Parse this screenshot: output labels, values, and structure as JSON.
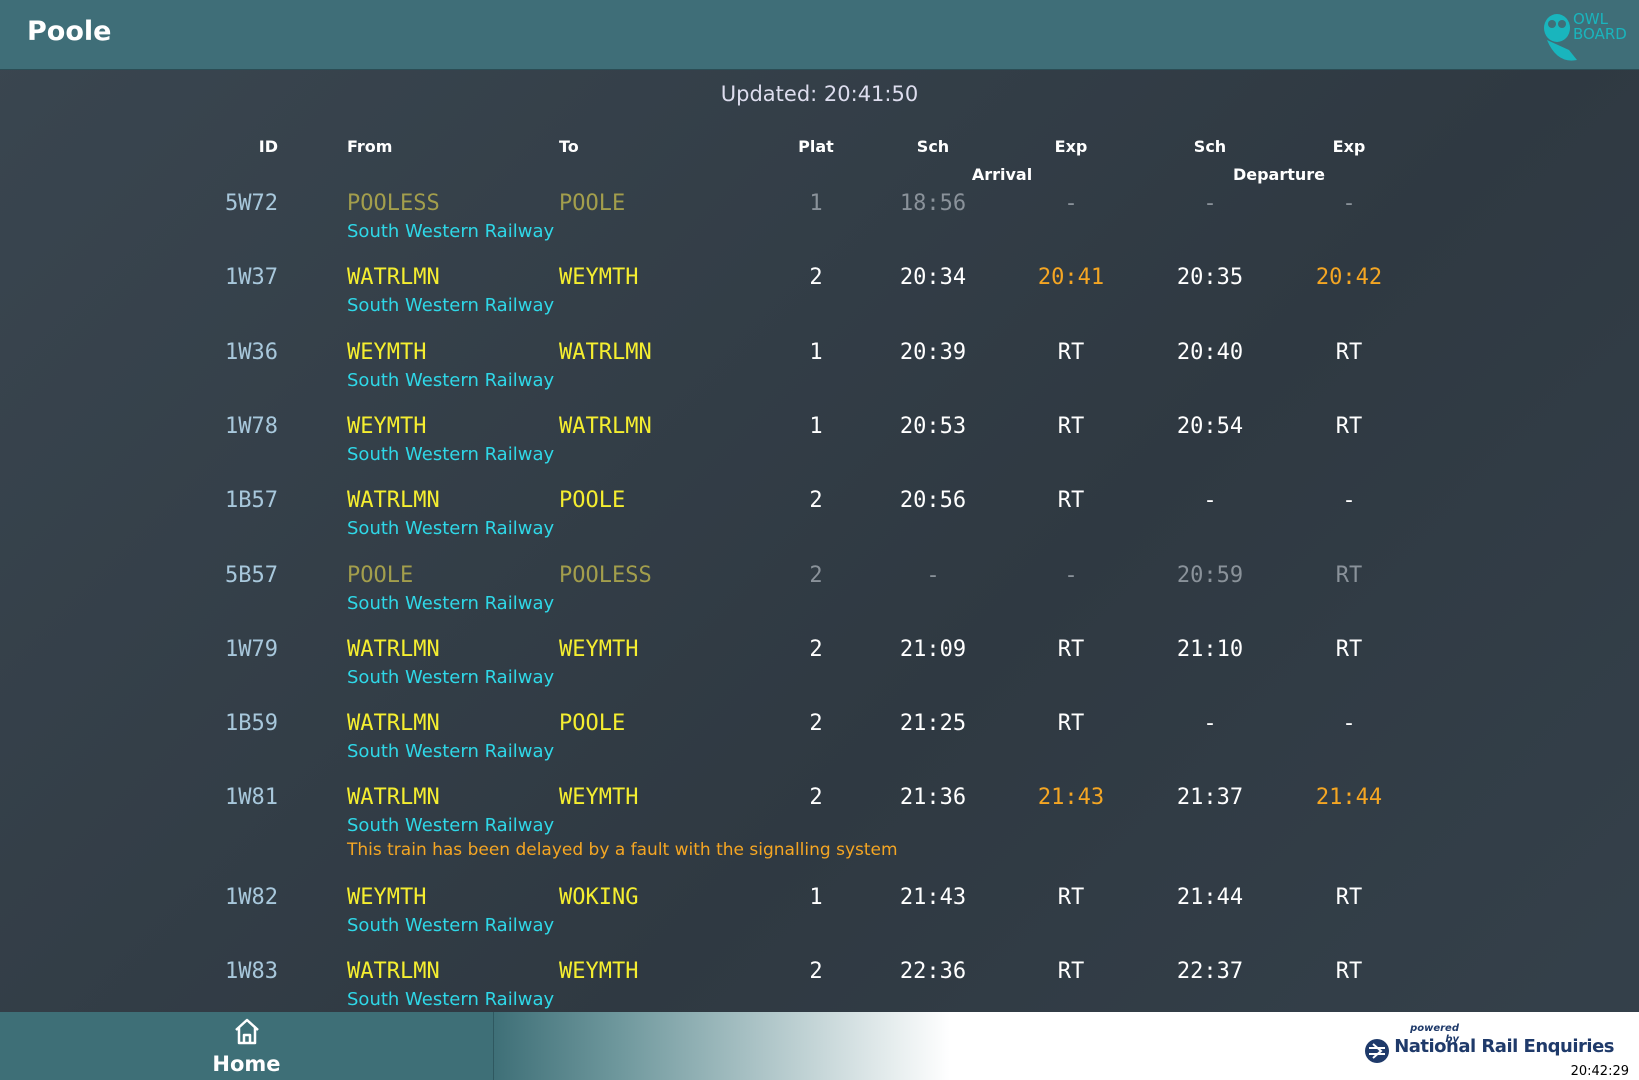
{
  "header": {
    "title": "Poole",
    "logo": [
      "OWL",
      "BOARD"
    ]
  },
  "updated": "Updated: 20:41:50",
  "table": {
    "columns": [
      "ID",
      "From",
      "To",
      "Plat",
      "Sch",
      "Exp",
      "Sch",
      "Exp"
    ],
    "groups": [
      "Arrival",
      "Departure"
    ],
    "rows": [
      {
        "id": "5W72",
        "from": "POOLESS",
        "to": "POOLE",
        "plat": "1",
        "arr_sch": "18:56",
        "arr_exp": "-",
        "dep_sch": "-",
        "dep_exp": "-",
        "operator": "South Western Railway",
        "inactive": true
      },
      {
        "id": "1W37",
        "from": "WATRLMN",
        "to": "WEYMTH",
        "plat": "2",
        "arr_sch": "20:34",
        "arr_exp": "20:41",
        "dep_sch": "20:35",
        "dep_exp": "20:42",
        "operator": "South Western Railway"
      },
      {
        "id": "1W36",
        "from": "WEYMTH",
        "to": "WATRLMN",
        "plat": "1",
        "arr_sch": "20:39",
        "arr_exp": "RT",
        "dep_sch": "20:40",
        "dep_exp": "RT",
        "operator": "South Western Railway"
      },
      {
        "id": "1W78",
        "from": "WEYMTH",
        "to": "WATRLMN",
        "plat": "1",
        "arr_sch": "20:53",
        "arr_exp": "RT",
        "dep_sch": "20:54",
        "dep_exp": "RT",
        "operator": "South Western Railway"
      },
      {
        "id": "1B57",
        "from": "WATRLMN",
        "to": "POOLE",
        "plat": "2",
        "arr_sch": "20:56",
        "arr_exp": "RT",
        "dep_sch": "-",
        "dep_exp": "-",
        "operator": "South Western Railway"
      },
      {
        "id": "5B57",
        "from": "POOLE",
        "to": "POOLESS",
        "plat": "2",
        "arr_sch": "-",
        "arr_exp": "-",
        "dep_sch": "20:59",
        "dep_exp": "RT",
        "operator": "South Western Railway",
        "inactive": true
      },
      {
        "id": "1W79",
        "from": "WATRLMN",
        "to": "WEYMTH",
        "plat": "2",
        "arr_sch": "21:09",
        "arr_exp": "RT",
        "dep_sch": "21:10",
        "dep_exp": "RT",
        "operator": "South Western Railway"
      },
      {
        "id": "1B59",
        "from": "WATRLMN",
        "to": "POOLE",
        "plat": "2",
        "arr_sch": "21:25",
        "arr_exp": "RT",
        "dep_sch": "-",
        "dep_exp": "-",
        "operator": "South Western Railway"
      },
      {
        "id": "1W81",
        "from": "WATRLMN",
        "to": "WEYMTH",
        "plat": "2",
        "arr_sch": "21:36",
        "arr_exp": "21:43",
        "dep_sch": "21:37",
        "dep_exp": "21:44",
        "operator": "South Western Railway",
        "message": "This train has been delayed by a fault with the signalling system"
      },
      {
        "id": "1W82",
        "from": "WEYMTH",
        "to": "WOKING",
        "plat": "1",
        "arr_sch": "21:43",
        "arr_exp": "RT",
        "dep_sch": "21:44",
        "dep_exp": "RT",
        "operator": "South Western Railway"
      },
      {
        "id": "1W83",
        "from": "WATRLMN",
        "to": "WEYMTH",
        "plat": "2",
        "arr_sch": "22:36",
        "arr_exp": "RT",
        "dep_sch": "22:37",
        "dep_exp": "RT",
        "operator": "South Western Railway"
      }
    ]
  },
  "footer": {
    "home": "Home",
    "powered": "powered by",
    "provider": "National Rail Enquiries",
    "clock": "20:42:29"
  }
}
